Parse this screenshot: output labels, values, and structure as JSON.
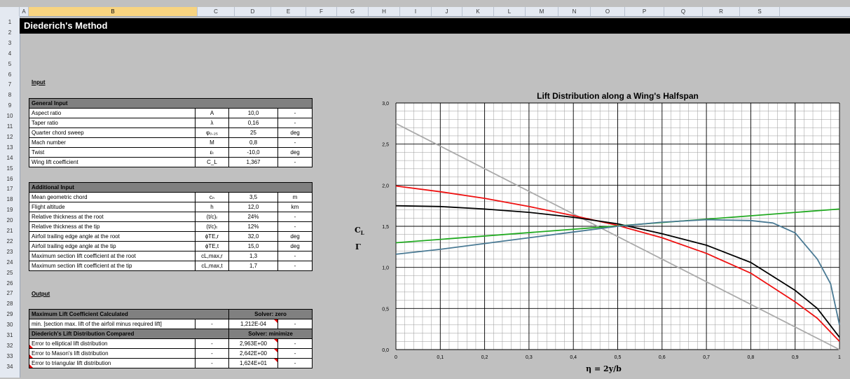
{
  "columns": [
    "A",
    "B",
    "C",
    "D",
    "E",
    "F",
    "G",
    "H",
    "I",
    "J",
    "K",
    "L",
    "M",
    "N",
    "O",
    "P",
    "Q",
    "R",
    "S"
  ],
  "selected_column": "B",
  "rows": [
    "1",
    "2",
    "3",
    "4",
    "5",
    "6",
    "7",
    "8",
    "9",
    "10",
    "11",
    "12",
    "13",
    "14",
    "15",
    "16",
    "17",
    "18",
    "19",
    "20",
    "21",
    "22",
    "23",
    "24",
    "25",
    "26",
    "27",
    "28",
    "29",
    "30",
    "31",
    "32",
    "33",
    "34"
  ],
  "title": "Diederich's Method",
  "input_label": "Input",
  "output_label": "Output",
  "general_input": {
    "header": "General Input",
    "rows": [
      {
        "name": "Aspect ratio",
        "sym": "A",
        "value": "10,0",
        "unit": "-"
      },
      {
        "name": "Taper ratio",
        "sym": "λ",
        "value": "0,16",
        "unit": "-"
      },
      {
        "name": "Quarter chord sweep",
        "sym": "φ₀.₂₅",
        "value": "25",
        "unit": "deg"
      },
      {
        "name": "Mach number",
        "sym": "M",
        "value": "0,8",
        "unit": "-"
      },
      {
        "name": "Twist",
        "sym": "εₜ",
        "value": "-10,0",
        "unit": "deg"
      },
      {
        "name": "Wing lift coefficient",
        "sym": "C_L",
        "value": "1,367",
        "unit": "-"
      }
    ]
  },
  "additional_input": {
    "header": "Additional Input",
    "rows": [
      {
        "name": "Mean geometric chord",
        "sym": "cₙ",
        "value": "3,5",
        "unit": "m"
      },
      {
        "name": "Flight altitude",
        "sym": "h",
        "value": "12,0",
        "unit": "km"
      },
      {
        "name": "Relative thickness at the root",
        "sym": "(t/c)ᵣ",
        "value": "24%",
        "unit": "-"
      },
      {
        "name": "Relative thickness at the tip",
        "sym": "(t/c)ₜ",
        "value": "12%",
        "unit": "-"
      },
      {
        "name": "Airfoil trailing edge angle at the root",
        "sym": "ϕTE,r",
        "value": "32,0",
        "unit": "deg"
      },
      {
        "name": "Airfoil trailing edge angle at the tip",
        "sym": "ϕTE,t",
        "value": "15,0",
        "unit": "deg"
      },
      {
        "name": "Maximum section lift coefficient at the root",
        "sym": "cL,max,r",
        "value": "1,3",
        "unit": "-"
      },
      {
        "name": "Maximum section lift coefficient at the tip",
        "sym": "cL,max,t",
        "value": "1,7",
        "unit": "-"
      }
    ]
  },
  "max_lift": {
    "header": "Maximum Lift Coefficient Calculated",
    "solver": "Solver: zero",
    "row": {
      "name": "min. [section max. lift of the airfoil minus required lift]",
      "sym": "-",
      "value": "1,212E-04",
      "unit": "-"
    }
  },
  "compared": {
    "header": "Diederich's Lift Distribution Compared",
    "solver": "Solver: minimize",
    "rows": [
      {
        "name": "Error to elliptical lift distribution",
        "sym": "-",
        "value": "2,963E+00",
        "unit": "-"
      },
      {
        "name": "Error to Mason's lift distribution",
        "sym": "-",
        "value": "2,642E+00",
        "unit": "-"
      },
      {
        "name": "Error to triangular lift distribution",
        "sym": "-",
        "value": "1,624E+01",
        "unit": "-"
      }
    ]
  },
  "chart_data": {
    "type": "line",
    "title": "Lift Distribution along a Wing's Halfspan",
    "xlabel": "η = 2y/b",
    "ylabel_1": "CL",
    "ylabel_2": "Γ",
    "xlim": [
      0,
      1
    ],
    "ylim": [
      0,
      3
    ],
    "xticks": [
      "0",
      "0,1",
      "0,2",
      "0,3",
      "0,4",
      "0,5",
      "0,6",
      "0,7",
      "0,8",
      "0,9",
      "1"
    ],
    "yticks": [
      "0,0",
      "0,5",
      "1,0",
      "1,5",
      "2,0",
      "2,5",
      "3,0"
    ],
    "grid": true,
    "series": [
      {
        "color": "#aaaaaa",
        "x": [
          0,
          1
        ],
        "y": [
          2.75,
          0
        ]
      },
      {
        "color": "#ee1111",
        "x": [
          0,
          0.1,
          0.2,
          0.3,
          0.4,
          0.5,
          0.6,
          0.7,
          0.8,
          0.9,
          0.95,
          1
        ],
        "y": [
          1.99,
          1.92,
          1.84,
          1.74,
          1.63,
          1.51,
          1.36,
          1.17,
          0.93,
          0.58,
          0.38,
          0.1
        ]
      },
      {
        "color": "#000000",
        "x": [
          0,
          0.1,
          0.2,
          0.3,
          0.4,
          0.5,
          0.6,
          0.7,
          0.8,
          0.9,
          0.95,
          1
        ],
        "y": [
          1.75,
          1.74,
          1.71,
          1.67,
          1.61,
          1.53,
          1.41,
          1.27,
          1.06,
          0.72,
          0.5,
          0.15
        ]
      },
      {
        "color": "#22aa22",
        "x": [
          0,
          1
        ],
        "y": [
          1.3,
          1.71
        ]
      },
      {
        "color": "#4a7a94",
        "x": [
          0,
          0.1,
          0.2,
          0.3,
          0.4,
          0.5,
          0.6,
          0.7,
          0.8,
          0.85,
          0.9,
          0.95,
          0.98,
          1
        ],
        "y": [
          1.16,
          1.22,
          1.29,
          1.36,
          1.43,
          1.5,
          1.55,
          1.58,
          1.57,
          1.54,
          1.42,
          1.1,
          0.8,
          0.3
        ]
      }
    ]
  }
}
